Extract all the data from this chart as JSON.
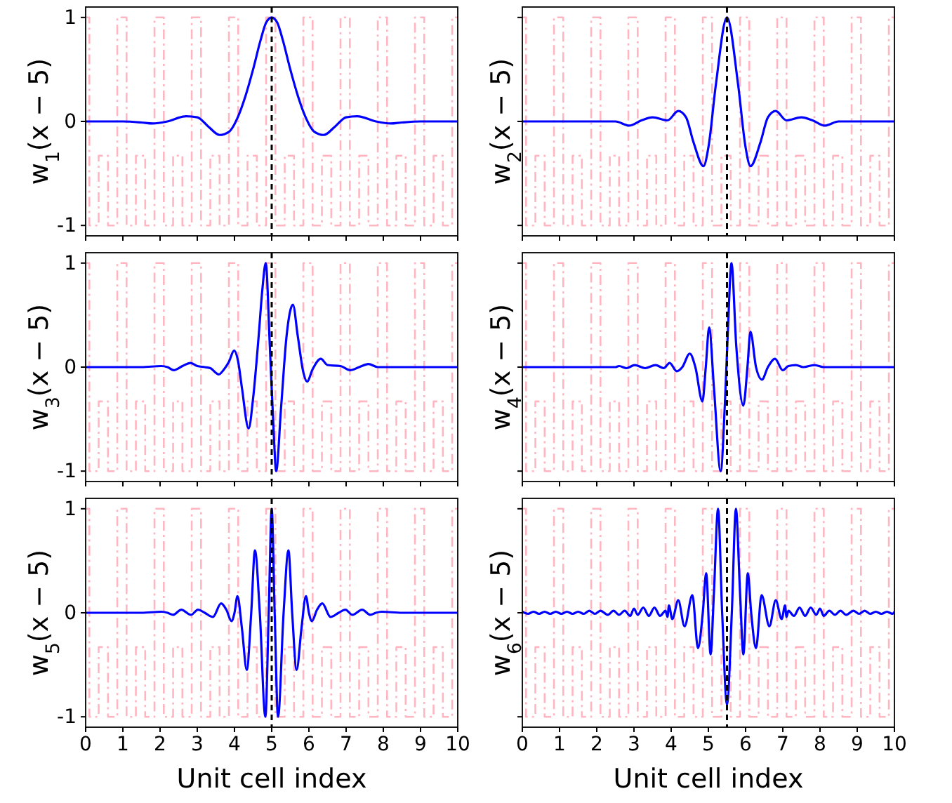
{
  "chart_data": [
    {
      "type": "line",
      "ylabel": "w$_{1}$(x − 5)",
      "xlim": [
        0,
        10
      ],
      "ylim": [
        -1.1,
        1.1
      ],
      "xticks": [
        0,
        1,
        2,
        3,
        4,
        5,
        6,
        7,
        8,
        9,
        10
      ],
      "yticks": [
        -1,
        0,
        1
      ],
      "tick_labels": "y",
      "ref_lines": [
        {
          "axis": "x",
          "value": 5,
          "color": "#000000",
          "line_style": "dashed"
        }
      ],
      "series": [
        {
          "type": "step",
          "color": "#ffb6c1",
          "line_style": "dashed",
          "x": [
            0,
            0.1,
            0.35,
            0.6,
            0.85,
            1.1,
            1.35,
            1.6,
            1.85,
            2.1,
            2.35,
            2.6,
            2.85,
            3.1,
            3.35,
            3.6,
            3.85,
            4.1,
            4.35,
            4.6,
            4.85,
            5.1,
            5.35,
            5.6,
            5.85,
            6.1,
            6.35,
            6.6,
            6.85,
            7.1,
            7.35,
            7.6,
            7.85,
            8.1,
            8.35,
            8.6,
            8.85,
            9.1,
            9.35,
            9.6,
            9.85,
            10
          ],
          "values": [
            1,
            -1,
            -0.33,
            -1,
            1,
            -1,
            -0.33,
            -1,
            1,
            -1,
            -0.33,
            -1,
            1,
            -1,
            -0.33,
            -1,
            1,
            -1,
            -0.33,
            -1,
            1,
            -1,
            -0.33,
            -1,
            1,
            -1,
            -0.33,
            -1,
            1,
            -1,
            -0.33,
            -1,
            1,
            -1,
            -0.33,
            -1,
            1,
            -1,
            -0.33,
            -1,
            1,
            1
          ]
        },
        {
          "type": "line",
          "color": "#0000ff",
          "line_style": "solid",
          "x": [
            0,
            0.5,
            1,
            1.5,
            1.8,
            2.2,
            2.7,
            3.0,
            3.3,
            3.6,
            3.85,
            4.1,
            4.3,
            4.5,
            4.7,
            4.85,
            5,
            5.15,
            5.3,
            5.5,
            5.7,
            5.9,
            6.15,
            6.4,
            6.7,
            7.0,
            7.3,
            7.8,
            8.2,
            8.5,
            9,
            9.5,
            10
          ],
          "values": [
            0,
            0,
            0,
            -0.01,
            -0.02,
            0,
            0.05,
            0.04,
            -0.05,
            -0.13,
            -0.1,
            0.05,
            0.25,
            0.5,
            0.78,
            0.95,
            1,
            0.95,
            0.78,
            0.5,
            0.25,
            0.05,
            -0.1,
            -0.13,
            -0.05,
            0.04,
            0.05,
            0,
            -0.02,
            -0.01,
            0,
            0,
            0
          ]
        }
      ]
    },
    {
      "type": "line",
      "ylabel": "w$_{2}$(x − 5)",
      "xlim": [
        0,
        10
      ],
      "ylim": [
        -1.1,
        1.1
      ],
      "xticks": [
        0,
        1,
        2,
        3,
        4,
        5,
        6,
        7,
        8,
        9,
        10
      ],
      "yticks": [
        -1,
        0,
        1
      ],
      "tick_labels": false,
      "ref_lines": [
        {
          "axis": "x",
          "value": 5.5,
          "color": "#000000",
          "line_style": "dashed"
        }
      ],
      "series": [
        {
          "type": "step",
          "color": "#ffb6c1",
          "line_style": "dashed",
          "x": [
            0,
            0.1,
            0.35,
            0.6,
            0.85,
            1.1,
            1.35,
            1.6,
            1.85,
            2.1,
            2.35,
            2.6,
            2.85,
            3.1,
            3.35,
            3.6,
            3.85,
            4.1,
            4.35,
            4.6,
            4.85,
            5.1,
            5.35,
            5.6,
            5.85,
            6.1,
            6.35,
            6.6,
            6.85,
            7.1,
            7.35,
            7.6,
            7.85,
            8.1,
            8.35,
            8.6,
            8.85,
            9.1,
            9.35,
            9.6,
            9.85,
            10
          ],
          "values": [
            1,
            -1,
            -0.33,
            -1,
            1,
            -1,
            -0.33,
            -1,
            1,
            -1,
            -0.33,
            -1,
            1,
            -1,
            -0.33,
            -1,
            1,
            -1,
            -0.33,
            -1,
            1,
            -1,
            -0.33,
            -1,
            1,
            -1,
            -0.33,
            -1,
            1,
            -1,
            -0.33,
            -1,
            1,
            -1,
            -0.33,
            -1,
            1,
            -1,
            -0.33,
            -1,
            1,
            1
          ]
        },
        {
          "type": "line",
          "color": "#0000ff",
          "line_style": "solid",
          "x": [
            0,
            1,
            2,
            2.5,
            2.87,
            3.2,
            3.5,
            3.9,
            4.19,
            4.4,
            4.6,
            4.87,
            5.0,
            5.2,
            5.5,
            5.8,
            6.0,
            6.13,
            6.4,
            6.6,
            6.81,
            7.1,
            7.5,
            7.8,
            8.13,
            8.5,
            9,
            10
          ],
          "values": [
            0,
            0,
            0,
            0,
            -0.04,
            0.01,
            0.04,
            0.01,
            0.1,
            0.04,
            -0.2,
            -0.43,
            -0.25,
            0.35,
            1,
            0.35,
            -0.25,
            -0.43,
            -0.2,
            0.04,
            0.1,
            0.01,
            0.04,
            0.01,
            -0.04,
            0,
            0,
            0
          ]
        }
      ]
    },
    {
      "type": "line",
      "ylabel": "w$_{3}$(x − 5)",
      "xlim": [
        0,
        10
      ],
      "ylim": [
        -1.1,
        1.1
      ],
      "xticks": [
        0,
        1,
        2,
        3,
        4,
        5,
        6,
        7,
        8,
        9,
        10
      ],
      "yticks": [
        -1,
        0,
        1
      ],
      "tick_labels": "y",
      "ref_lines": [
        {
          "axis": "x",
          "value": 5,
          "color": "#000000",
          "line_style": "dashed"
        }
      ],
      "series": [
        {
          "type": "step",
          "color": "#ffb6c1",
          "line_style": "dashed",
          "x": [
            0,
            0.1,
            0.35,
            0.6,
            0.85,
            1.1,
            1.35,
            1.6,
            1.85,
            2.1,
            2.35,
            2.6,
            2.85,
            3.1,
            3.35,
            3.6,
            3.85,
            4.1,
            4.35,
            4.6,
            4.85,
            5.1,
            5.35,
            5.6,
            5.85,
            6.1,
            6.35,
            6.6,
            6.85,
            7.1,
            7.35,
            7.6,
            7.85,
            8.1,
            8.35,
            8.6,
            8.85,
            9.1,
            9.35,
            9.6,
            9.85,
            10
          ],
          "values": [
            1,
            -1,
            -0.33,
            -1,
            1,
            -1,
            -0.33,
            -1,
            1,
            -1,
            -0.33,
            -1,
            1,
            -1,
            -0.33,
            -1,
            1,
            -1,
            -0.33,
            -1,
            1,
            -1,
            -0.33,
            -1,
            1,
            -1,
            -0.33,
            -1,
            1,
            -1,
            -0.33,
            -1,
            1,
            -1,
            -0.33,
            -1,
            1,
            -1,
            -0.33,
            -1,
            1,
            1
          ]
        },
        {
          "type": "line",
          "color": "#0000ff",
          "line_style": "solid",
          "x": [
            0,
            1.5,
            2.03,
            2.2,
            2.37,
            2.6,
            2.82,
            3.0,
            3.2,
            3.35,
            3.58,
            3.7,
            3.85,
            3.99,
            4.1,
            4.2,
            4.38,
            4.5,
            4.65,
            4.75,
            4.84,
            4.95,
            5.05,
            5.12,
            5.25,
            5.4,
            5.57,
            5.7,
            5.85,
            5.95,
            6.1,
            6.32,
            6.5,
            6.85,
            7.11,
            7.35,
            7.6,
            7.85,
            8.2,
            9,
            10
          ],
          "values": [
            0,
            0,
            0.01,
            0,
            -0.03,
            0.01,
            0.04,
            0.01,
            0,
            -0.01,
            -0.07,
            -0.03,
            0.05,
            0.16,
            0.05,
            -0.2,
            -0.59,
            -0.3,
            0.3,
            0.75,
            1,
            0.2,
            -0.6,
            -1,
            -0.4,
            0.3,
            0.6,
            0.3,
            -0.05,
            -0.14,
            -0.02,
            0.08,
            0.02,
            0.01,
            -0.03,
            0,
            0.03,
            0,
            0,
            0,
            0
          ]
        }
      ]
    },
    {
      "type": "line",
      "ylabel": "w$_{4}$(x − 5)",
      "xlim": [
        0,
        10
      ],
      "ylim": [
        -1.1,
        1.1
      ],
      "xticks": [
        0,
        1,
        2,
        3,
        4,
        5,
        6,
        7,
        8,
        9,
        10
      ],
      "yticks": [
        -1,
        0,
        1
      ],
      "tick_labels": false,
      "ref_lines": [
        {
          "axis": "x",
          "value": 5.5,
          "color": "#000000",
          "line_style": "dashed"
        }
      ],
      "series": [
        {
          "type": "step",
          "color": "#ffb6c1",
          "line_style": "dashed",
          "x": [
            0,
            0.1,
            0.35,
            0.6,
            0.85,
            1.1,
            1.35,
            1.6,
            1.85,
            2.1,
            2.35,
            2.6,
            2.85,
            3.1,
            3.35,
            3.6,
            3.85,
            4.1,
            4.35,
            4.6,
            4.85,
            5.1,
            5.35,
            5.6,
            5.85,
            6.1,
            6.35,
            6.6,
            6.85,
            7.1,
            7.35,
            7.6,
            7.85,
            8.1,
            8.35,
            8.6,
            8.85,
            9.1,
            9.35,
            9.6,
            9.85,
            10
          ],
          "values": [
            1,
            -1,
            -0.33,
            -1,
            1,
            -1,
            -0.33,
            -1,
            1,
            -1,
            -0.33,
            -1,
            1,
            -1,
            -0.33,
            -1,
            1,
            -1,
            -0.33,
            -1,
            1,
            -1,
            -0.33,
            -1,
            1,
            -1,
            -0.33,
            -1,
            1,
            -1,
            -0.33,
            -1,
            1,
            -1,
            -0.33,
            -1,
            1,
            -1,
            -0.33,
            -1,
            1,
            1
          ]
        },
        {
          "type": "line",
          "color": "#0000ff",
          "line_style": "solid",
          "x": [
            0,
            2.5,
            2.6,
            2.8,
            3.02,
            3.3,
            3.58,
            3.8,
            3.96,
            4.15,
            4.3,
            4.5,
            4.65,
            4.84,
            4.93,
            5.02,
            5.15,
            5.33,
            5.45,
            5.53,
            5.62,
            5.75,
            5.94,
            6.05,
            6.13,
            6.28,
            6.44,
            6.6,
            6.79,
            7.0,
            7.15,
            7.35,
            7.55,
            7.85,
            8.1,
            8.5,
            10
          ],
          "values": [
            0,
            0,
            0.01,
            -0.01,
            0.02,
            -0.01,
            0.02,
            -0.01,
            0.04,
            -0.04,
            0,
            0.13,
            0,
            -0.33,
            0,
            0.38,
            -0.2,
            -1,
            -0.3,
            0.4,
            1,
            0.2,
            -0.37,
            0,
            0.34,
            0,
            -0.12,
            0,
            0.08,
            -0.03,
            0.01,
            0.02,
            0,
            0.02,
            0,
            0,
            0
          ]
        }
      ]
    },
    {
      "type": "line",
      "ylabel": "w$_{5}$(x − 5)",
      "xlabel": "Unit cell index",
      "xlim": [
        0,
        10
      ],
      "ylim": [
        -1.1,
        1.1
      ],
      "xticks": [
        0,
        1,
        2,
        3,
        4,
        5,
        6,
        7,
        8,
        9,
        10
      ],
      "yticks": [
        -1,
        0,
        1
      ],
      "ref_lines": [
        {
          "axis": "x",
          "value": 5,
          "color": "#000000",
          "line_style": "dashed"
        }
      ],
      "series": [
        {
          "type": "step",
          "color": "#ffb6c1",
          "line_style": "dashed",
          "x": [
            0,
            0.1,
            0.35,
            0.6,
            0.85,
            1.1,
            1.35,
            1.6,
            1.85,
            2.1,
            2.35,
            2.6,
            2.85,
            3.1,
            3.35,
            3.6,
            3.85,
            4.1,
            4.35,
            4.6,
            4.85,
            5.1,
            5.35,
            5.6,
            5.85,
            6.1,
            6.35,
            6.6,
            6.85,
            7.1,
            7.35,
            7.6,
            7.85,
            8.1,
            8.35,
            8.6,
            8.85,
            9.1,
            9.35,
            9.6,
            9.85,
            10
          ],
          "values": [
            1,
            -1,
            -0.33,
            -1,
            1,
            -1,
            -0.33,
            -1,
            1,
            -1,
            -0.33,
            -1,
            1,
            -1,
            -0.33,
            -1,
            1,
            -1,
            -0.33,
            -1,
            1,
            -1,
            -0.33,
            -1,
            1,
            -1,
            -0.33,
            -1,
            1,
            -1,
            -0.33,
            -1,
            1,
            -1,
            -0.33,
            -1,
            1,
            -1,
            -0.33,
            -1,
            1,
            1
          ]
        },
        {
          "type": "line",
          "color": "#0000ff",
          "line_style": "solid",
          "x": [
            0,
            1.5,
            2.04,
            2.2,
            2.35,
            2.57,
            2.83,
            3.02,
            3.2,
            3.42,
            3.64,
            3.78,
            3.92,
            4.0,
            4.08,
            4.2,
            4.33,
            4.45,
            4.55,
            4.68,
            4.83,
            4.92,
            5,
            5.08,
            5.17,
            5.32,
            5.45,
            5.55,
            5.67,
            5.8,
            5.92,
            6.0,
            6.08,
            6.22,
            6.36,
            6.58,
            6.8,
            6.98,
            7.17,
            7.43,
            7.65,
            7.8,
            7.96,
            8.5,
            10
          ],
          "values": [
            0,
            0,
            0.01,
            0,
            -0.02,
            0.03,
            -0.02,
            0.03,
            0,
            -0.04,
            0.09,
            0.03,
            -0.08,
            0,
            0.16,
            -0.15,
            -0.55,
            0,
            0.6,
            0,
            -1,
            0,
            1,
            0,
            -1,
            0,
            0.6,
            0,
            -0.55,
            -0.15,
            0.16,
            0,
            -0.08,
            0.03,
            0.09,
            -0.04,
            0,
            0.03,
            -0.02,
            0.03,
            -0.02,
            0,
            0.01,
            0,
            0
          ]
        }
      ]
    },
    {
      "type": "line",
      "ylabel": "w$_{6}$(x − 5)",
      "xlabel": "Unit cell index",
      "xlim": [
        0,
        10
      ],
      "ylim": [
        -1.1,
        1.1
      ],
      "xticks": [
        0,
        1,
        2,
        3,
        4,
        5,
        6,
        7,
        8,
        9,
        10
      ],
      "yticks": [
        -1,
        0,
        1
      ],
      "tick_labels": "x",
      "ref_lines": [
        {
          "axis": "x",
          "value": 5.5,
          "color": "#000000",
          "line_style": "dashed"
        }
      ],
      "series": [
        {
          "type": "step",
          "color": "#ffb6c1",
          "line_style": "dashed",
          "x": [
            0,
            0.1,
            0.35,
            0.6,
            0.85,
            1.1,
            1.35,
            1.6,
            1.85,
            2.1,
            2.35,
            2.6,
            2.85,
            3.1,
            3.35,
            3.6,
            3.85,
            4.1,
            4.35,
            4.6,
            4.85,
            5.1,
            5.35,
            5.6,
            5.85,
            6.1,
            6.35,
            6.6,
            6.85,
            7.1,
            7.35,
            7.6,
            7.85,
            8.1,
            8.35,
            8.6,
            8.85,
            9.1,
            9.35,
            9.6,
            9.85,
            10
          ],
          "values": [
            1,
            -1,
            -0.33,
            -1,
            1,
            -1,
            -0.33,
            -1,
            1,
            -1,
            -0.33,
            -1,
            1,
            -1,
            -0.33,
            -1,
            1,
            -1,
            -0.33,
            -1,
            1,
            -1,
            -0.33,
            -1,
            1,
            -1,
            -0.33,
            -1,
            1,
            -1,
            -0.33,
            -1,
            1,
            -1,
            -0.33,
            -1,
            1,
            -1,
            -0.33,
            -1,
            1,
            1
          ]
        },
        {
          "type": "line",
          "color": "#0000ff",
          "line_style": "solid",
          "x": [
            0,
            0.15,
            0.3,
            0.45,
            0.6,
            0.75,
            0.9,
            1.05,
            1.2,
            1.35,
            1.5,
            1.65,
            1.8,
            1.95,
            2.1,
            2.3,
            2.45,
            2.6,
            2.75,
            2.9,
            3.0,
            3.1,
            3.25,
            3.4,
            3.55,
            3.7,
            3.85,
            3.9,
            3.94,
            4.03,
            4.19,
            4.36,
            4.57,
            4.72,
            4.85,
            4.94,
            5.06,
            5.15,
            5.26,
            5.37,
            5.5,
            5.63,
            5.74,
            5.85,
            5.94,
            6.06,
            6.15,
            6.28,
            6.43,
            6.64,
            6.81,
            6.97,
            7.06,
            7.1,
            7.15,
            7.3,
            7.45,
            7.6,
            7.75,
            7.9,
            8.0,
            8.1,
            8.25,
            8.4,
            8.55,
            8.7,
            8.9,
            9.05,
            9.2,
            9.35,
            9.5,
            9.65,
            9.8,
            9.95,
            10
          ],
          "values": [
            0.01,
            -0.01,
            0.01,
            -0.01,
            0.01,
            -0.01,
            0.01,
            -0.01,
            0.01,
            -0.01,
            0.01,
            -0.01,
            0.02,
            -0.01,
            0.02,
            -0.02,
            0.02,
            -0.02,
            0.02,
            -0.03,
            0.04,
            -0.02,
            0.05,
            -0.03,
            0.05,
            -0.03,
            0.02,
            -0.04,
            0.07,
            -0.06,
            0.12,
            -0.13,
            0.17,
            -0.34,
            0,
            0.38,
            -0.4,
            0.2,
            1,
            0,
            -0.88,
            0,
            1,
            0.2,
            -0.4,
            0.38,
            0,
            -0.34,
            0.17,
            -0.13,
            0.12,
            -0.06,
            0.07,
            -0.04,
            0.02,
            -0.03,
            0.05,
            -0.03,
            0.05,
            -0.02,
            0.04,
            -0.03,
            0.02,
            -0.02,
            0.02,
            -0.02,
            0.02,
            -0.01,
            0.02,
            -0.01,
            0.01,
            -0.01,
            0.01,
            -0.01,
            0.01
          ]
        }
      ]
    }
  ]
}
